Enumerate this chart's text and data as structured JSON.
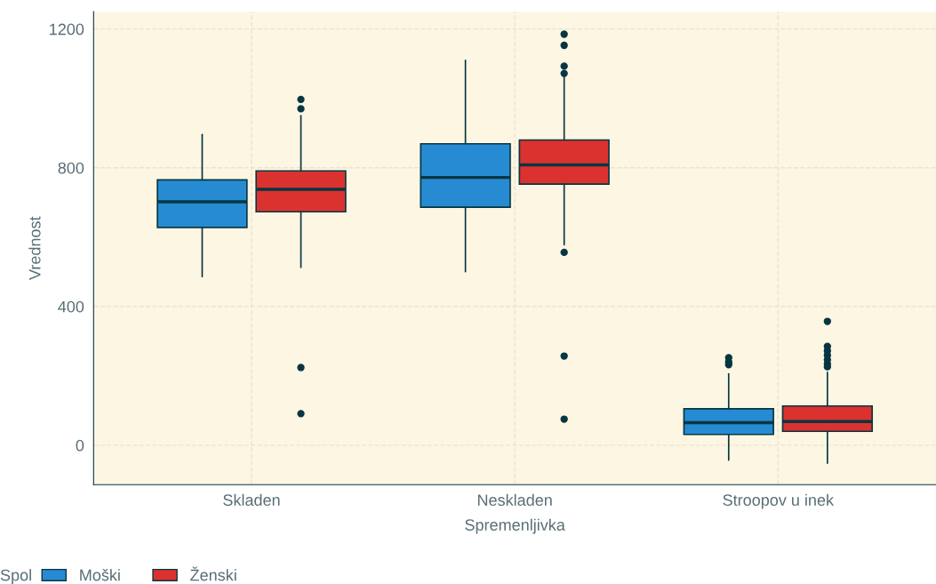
{
  "chart_data": {
    "type": "box",
    "xlabel": "Spremenljivka",
    "ylabel": "Vrednost",
    "legend_title": "Spol",
    "categories": [
      "Skladen",
      "Neskladen",
      "Stroopov u inek"
    ],
    "ylim": [
      -114,
      1250
    ],
    "yticks": [
      0,
      400,
      800,
      1200
    ],
    "grid": true,
    "legend": "bottom",
    "series": [
      {
        "name": "Moški",
        "color": "#268bd2",
        "boxes": [
          {
            "low": 486,
            "q1": 628,
            "median": 702,
            "q3": 765,
            "high": 896
          },
          {
            "low": 500,
            "q1": 686,
            "median": 772,
            "q3": 869,
            "high": 1110
          },
          {
            "low": -43,
            "q1": 31,
            "median": 65,
            "q3": 105,
            "high": 206,
            "outliers": [
              232,
              240,
              252
            ]
          }
        ]
      },
      {
        "name": "Ženski",
        "color": "#dc322f",
        "boxes": [
          {
            "low": 513,
            "q1": 673,
            "median": 738,
            "q3": 791,
            "high": 950,
            "outliers": [
              970,
              997,
              224,
              91
            ]
          },
          {
            "low": 578,
            "q1": 753,
            "median": 808,
            "q3": 880,
            "high": 1068,
            "outliers": [
              1072,
              1093,
              1153,
              1185,
              556,
              257,
              75
            ]
          },
          {
            "low": -52,
            "q1": 40,
            "median": 68,
            "q3": 113,
            "high": 210,
            "outliers": [
              226,
              234,
              246,
              259,
              272,
              285,
              357
            ]
          }
        ]
      }
    ]
  }
}
